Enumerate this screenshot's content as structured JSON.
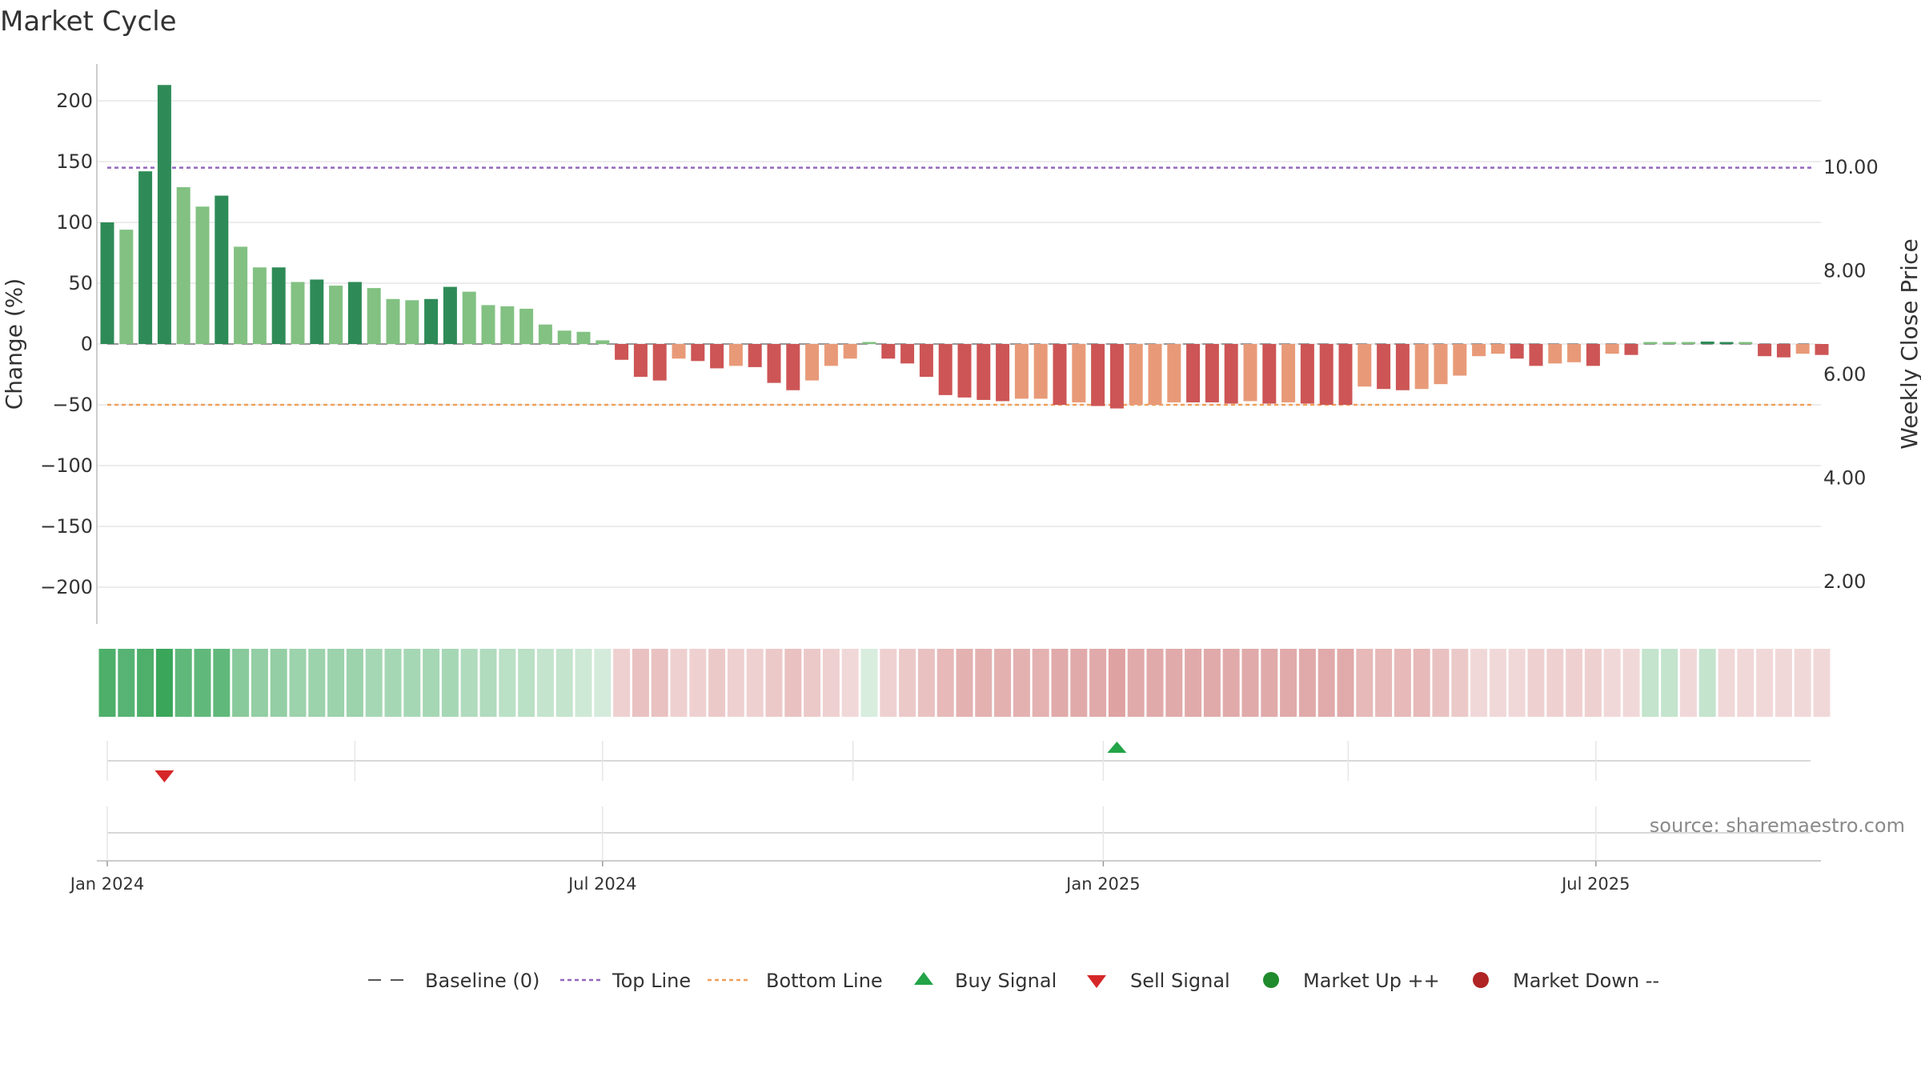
{
  "chart_data": {
    "type": "bar",
    "title": "Market Cycle",
    "ylabel": "Change (%)",
    "ylabel_right": "Weekly Close Price",
    "ylim": [
      -230,
      230
    ],
    "yticks": [
      200,
      150,
      100,
      50,
      0,
      -50,
      -100,
      -150,
      -200
    ],
    "ytick_labels": [
      "200",
      "150",
      "100",
      "50",
      "0",
      "−50",
      "−100",
      "−150",
      "−200"
    ],
    "y2lim": [
      0.5,
      12.2
    ],
    "y2ticks": [
      10,
      8,
      6,
      4,
      2
    ],
    "y2tick_labels": [
      "10.00",
      "8.00",
      "6.00",
      "4.00",
      "2.00"
    ],
    "x_start": "2024-01-01",
    "week_days": 7,
    "xticks": [
      {
        "label": "Jan 2024",
        "date": "2024-01-01"
      },
      {
        "label": "Jul 2024",
        "date": "2024-07-01"
      },
      {
        "label": "Jan 2025",
        "date": "2025-01-01"
      },
      {
        "label": "Jul 2025",
        "date": "2025-07-01"
      }
    ],
    "grid": true,
    "legend_position": "bottom",
    "top_line": 145,
    "bottom_line": -50,
    "baseline": 0,
    "bar_values": [
      100,
      94,
      142,
      213,
      129,
      113,
      122,
      80,
      63,
      63,
      51,
      53,
      48,
      51,
      46,
      37,
      36,
      37,
      47,
      43,
      32,
      31,
      29,
      16,
      11,
      10,
      3,
      -13,
      -27,
      -30,
      -12,
      -14,
      -20,
      -18,
      -19,
      -32,
      -38,
      -30,
      -18,
      -12,
      0,
      -12,
      -16,
      -27,
      -42,
      -44,
      -46,
      -47,
      -45,
      -45,
      -50,
      -48,
      -51,
      -53,
      -50,
      -50,
      -48,
      -48,
      -48,
      -49,
      -47,
      -49,
      -48,
      -49,
      -50,
      -50,
      -35,
      -37,
      -38,
      -37,
      -33,
      -26,
      -10,
      -8,
      -12,
      -18,
      -16,
      -15,
      -18,
      -8,
      -9,
      0,
      0,
      0,
      2,
      0,
      0,
      -10,
      -11,
      -8,
      -9
    ],
    "bar_tones": [
      "dg",
      "lg",
      "dg",
      "dg",
      "lg",
      "lg",
      "dg",
      "lg",
      "lg",
      "dg",
      "lg",
      "dg",
      "lg",
      "dg",
      "lg",
      "lg",
      "lg",
      "dg",
      "dg",
      "lg",
      "lg",
      "lg",
      "lg",
      "lg",
      "lg",
      "lg",
      "lg",
      "dr",
      "dr",
      "dr",
      "lr",
      "dr",
      "dr",
      "lr",
      "dr",
      "dr",
      "dr",
      "lr",
      "lr",
      "lr",
      "lg",
      "dr",
      "dr",
      "dr",
      "dr",
      "dr",
      "dr",
      "dr",
      "lr",
      "lr",
      "dr",
      "lr",
      "dr",
      "dr",
      "lr",
      "lr",
      "lr",
      "dr",
      "dr",
      "dr",
      "lr",
      "dr",
      "lr",
      "dr",
      "dr",
      "dr",
      "lr",
      "dr",
      "dr",
      "lr",
      "lr",
      "lr",
      "lr",
      "lr",
      "dr",
      "dr",
      "lr",
      "lr",
      "dr",
      "lr",
      "dr",
      "lg",
      "lg",
      "lg",
      "dg",
      "dg",
      "lg",
      "dr",
      "dr",
      "lr",
      "dr"
    ],
    "strip_levels": [
      0.9,
      0.85,
      0.9,
      1.0,
      0.8,
      0.8,
      0.8,
      0.6,
      0.55,
      0.55,
      0.5,
      0.5,
      0.5,
      0.5,
      0.45,
      0.45,
      0.45,
      0.45,
      0.45,
      0.4,
      0.4,
      0.35,
      0.35,
      0.3,
      0.3,
      0.25,
      0.22,
      0.3,
      0.4,
      0.4,
      0.3,
      0.3,
      0.35,
      0.3,
      0.3,
      0.35,
      0.4,
      0.35,
      0.3,
      0.25,
      0.2,
      0.3,
      0.35,
      0.4,
      0.45,
      0.5,
      0.5,
      0.5,
      0.5,
      0.5,
      0.55,
      0.55,
      0.55,
      0.6,
      0.55,
      0.55,
      0.55,
      0.55,
      0.55,
      0.55,
      0.55,
      0.55,
      0.55,
      0.55,
      0.55,
      0.55,
      0.45,
      0.45,
      0.45,
      0.45,
      0.4,
      0.35,
      0.25,
      0.25,
      0.25,
      0.3,
      0.3,
      0.3,
      0.3,
      0.25,
      0.25,
      0.3,
      0.3,
      0.25,
      0.3,
      0.25,
      0.25,
      0.25,
      0.25,
      0.25,
      0.25
    ],
    "strip_signs": [
      "g",
      "g",
      "g",
      "g",
      "g",
      "g",
      "g",
      "g",
      "g",
      "g",
      "g",
      "g",
      "g",
      "g",
      "g",
      "g",
      "g",
      "g",
      "g",
      "g",
      "g",
      "g",
      "g",
      "g",
      "g",
      "g",
      "g",
      "r",
      "r",
      "r",
      "r",
      "r",
      "r",
      "r",
      "r",
      "r",
      "r",
      "r",
      "r",
      "r",
      "g",
      "r",
      "r",
      "r",
      "r",
      "r",
      "r",
      "r",
      "r",
      "r",
      "r",
      "r",
      "r",
      "r",
      "r",
      "r",
      "r",
      "r",
      "r",
      "r",
      "r",
      "r",
      "r",
      "r",
      "r",
      "r",
      "r",
      "r",
      "r",
      "r",
      "r",
      "r",
      "r",
      "r",
      "r",
      "r",
      "r",
      "r",
      "r",
      "r",
      "r",
      "g",
      "g",
      "r",
      "g",
      "r",
      "r",
      "r",
      "r",
      "r",
      "r"
    ],
    "signals": [
      {
        "type": "sell",
        "date": "2024-01-22"
      },
      {
        "type": "buy",
        "date": "2025-01-06"
      }
    ],
    "source": "source: sharemaestro.com",
    "legend": [
      {
        "key": "baseline",
        "label": "Baseline (0)"
      },
      {
        "key": "top",
        "label": "Top Line"
      },
      {
        "key": "bottom",
        "label": "Bottom Line"
      },
      {
        "key": "buy",
        "label": "Buy Signal"
      },
      {
        "key": "sell",
        "label": "Sell Signal"
      },
      {
        "key": "up",
        "label": "Market Up ++"
      },
      {
        "key": "down",
        "label": "Market Down --"
      }
    ]
  },
  "colors": {
    "dark_green": "#2e8b57",
    "light_green": "#82c182",
    "dark_red": "#cd5555",
    "light_red": "#e89a78",
    "strip_green": "#3aa65a",
    "strip_red": "#c96464",
    "top_line": "#9467bd",
    "bottom_line": "#f0a05a",
    "baseline": "#555555",
    "buy": "#22a447",
    "sell": "#d62728",
    "market_up": "#1f8b2c",
    "market_down": "#b02424",
    "grid": "#e6e6e6",
    "axis": "#bbbbbb"
  }
}
